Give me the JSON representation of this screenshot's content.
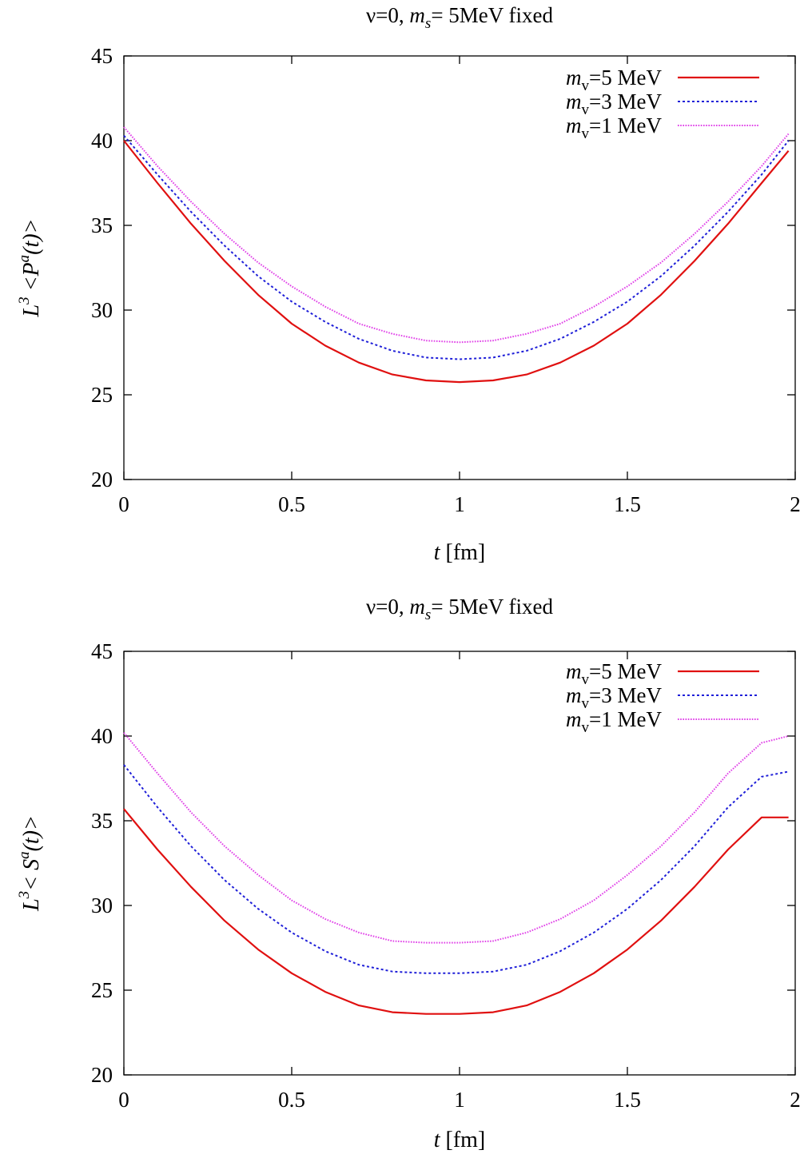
{
  "chart_data": [
    {
      "type": "line",
      "title": {
        "pre": "ν=0,  ",
        "var": "m",
        "sub": "s",
        "post": "= 5MeV fixed"
      },
      "xlabel": {
        "var": "t",
        "post": " [fm]"
      },
      "ylabel": {
        "pre": "L",
        "sup": "3",
        "mid": " <P",
        "sup2": "a",
        "post": "(t)>"
      },
      "xlim": [
        0,
        2
      ],
      "ylim": [
        20,
        45
      ],
      "xticks": [
        0,
        0.5,
        1,
        1.5,
        2
      ],
      "xtick_labels": [
        "0",
        "0.5",
        "1",
        "1.5",
        "2"
      ],
      "yticks": [
        20,
        25,
        30,
        35,
        40,
        45
      ],
      "ytick_labels": [
        "20",
        "25",
        "30",
        "35",
        "40",
        "45"
      ],
      "grid": false,
      "legend": "top-right",
      "x": [
        0,
        0.1,
        0.2,
        0.3,
        0.4,
        0.5,
        0.6,
        0.7,
        0.8,
        0.9,
        1.0,
        1.1,
        1.2,
        1.3,
        1.4,
        1.5,
        1.6,
        1.7,
        1.8,
        1.9,
        1.98
      ],
      "series": [
        {
          "name": {
            "var": "m",
            "sub": "v",
            "post": "=5 MeV"
          },
          "color": "#e01010",
          "dash": "solid",
          "values": [
            40.0,
            37.5,
            35.1,
            32.9,
            30.9,
            29.2,
            27.9,
            26.9,
            26.2,
            25.85,
            25.75,
            25.85,
            26.2,
            26.9,
            27.9,
            29.2,
            30.9,
            32.9,
            35.1,
            37.5,
            39.4
          ]
        },
        {
          "name": {
            "var": "m",
            "sub": "v",
            "post": "=3 MeV"
          },
          "color": "#1f1fd8",
          "dash": "dotted",
          "values": [
            40.3,
            38.0,
            35.8,
            33.8,
            32.0,
            30.5,
            29.3,
            28.3,
            27.6,
            27.2,
            27.1,
            27.2,
            27.6,
            28.3,
            29.3,
            30.5,
            32.0,
            33.8,
            35.8,
            38.0,
            40.0
          ]
        },
        {
          "name": {
            "var": "m",
            "sub": "v",
            "post": "=1 MeV"
          },
          "color": "#e040e8",
          "dash": "dotted",
          "values": [
            40.8,
            38.5,
            36.4,
            34.5,
            32.8,
            31.4,
            30.2,
            29.2,
            28.6,
            28.2,
            28.1,
            28.2,
            28.6,
            29.2,
            30.2,
            31.4,
            32.8,
            34.5,
            36.4,
            38.5,
            40.4
          ]
        }
      ]
    },
    {
      "type": "line",
      "title": {
        "pre": "ν=0,  ",
        "var": "m",
        "sub": "s",
        "post": "= 5MeV fixed"
      },
      "xlabel": {
        "var": "t",
        "post": " [fm]"
      },
      "ylabel": {
        "pre": "L",
        "sup": "3",
        "mid": "< S",
        "sup2": "a",
        "post": "(t)>"
      },
      "xlim": [
        0,
        2
      ],
      "ylim": [
        20,
        45
      ],
      "xticks": [
        0,
        0.5,
        1,
        1.5,
        2
      ],
      "xtick_labels": [
        "0",
        "0.5",
        "1",
        "1.5",
        "2"
      ],
      "yticks": [
        20,
        25,
        30,
        35,
        40,
        45
      ],
      "ytick_labels": [
        "20",
        "25",
        "30",
        "35",
        "40",
        "45"
      ],
      "grid": false,
      "legend": "top-right",
      "x": [
        0,
        0.1,
        0.2,
        0.3,
        0.4,
        0.5,
        0.6,
        0.7,
        0.8,
        0.9,
        1.0,
        1.1,
        1.2,
        1.3,
        1.4,
        1.5,
        1.6,
        1.7,
        1.8,
        1.9,
        1.98
      ],
      "series": [
        {
          "name": {
            "var": "m",
            "sub": "v",
            "post": "=5 MeV"
          },
          "color": "#e01010",
          "dash": "solid",
          "values": [
            35.7,
            33.3,
            31.1,
            29.1,
            27.4,
            26.0,
            24.9,
            24.1,
            23.7,
            23.6,
            23.6,
            23.7,
            24.1,
            24.9,
            26.0,
            27.4,
            29.1,
            31.1,
            33.3,
            35.2,
            35.2
          ]
        },
        {
          "name": {
            "var": "m",
            "sub": "v",
            "post": "=3 MeV"
          },
          "color": "#1f1fd8",
          "dash": "dotted",
          "values": [
            38.3,
            35.8,
            33.5,
            31.5,
            29.8,
            28.4,
            27.3,
            26.5,
            26.1,
            26.0,
            26.0,
            26.1,
            26.5,
            27.3,
            28.4,
            29.8,
            31.5,
            33.5,
            35.8,
            37.6,
            37.9
          ]
        },
        {
          "name": {
            "var": "m",
            "sub": "v",
            "post": "=1 MeV"
          },
          "color": "#e040e8",
          "dash": "dotted",
          "values": [
            40.2,
            37.8,
            35.5,
            33.5,
            31.8,
            30.3,
            29.2,
            28.4,
            27.9,
            27.8,
            27.8,
            27.9,
            28.4,
            29.2,
            30.3,
            31.8,
            33.5,
            35.5,
            37.8,
            39.6,
            40.0
          ]
        }
      ]
    }
  ]
}
